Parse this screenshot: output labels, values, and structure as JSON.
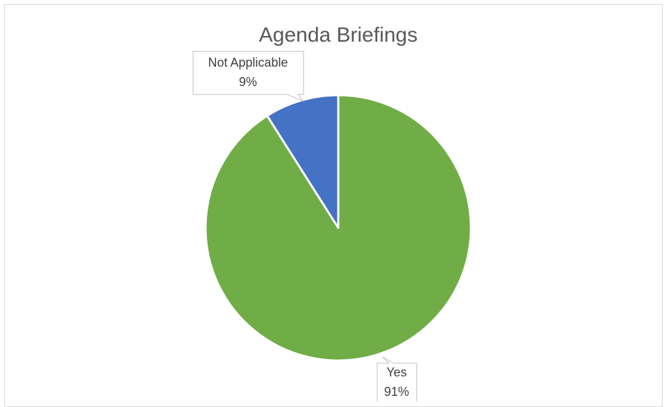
{
  "chart_data": {
    "type": "pie",
    "title": "Agenda Briefings",
    "slices": [
      {
        "label": "Yes",
        "value": 91,
        "value_label": "91%",
        "color": "#70ad47"
      },
      {
        "label": "Not Applicable",
        "value": 9,
        "value_label": "9%",
        "color": "#4472c4"
      }
    ],
    "start_angle": "12 o'clock",
    "direction": "clockwise"
  }
}
